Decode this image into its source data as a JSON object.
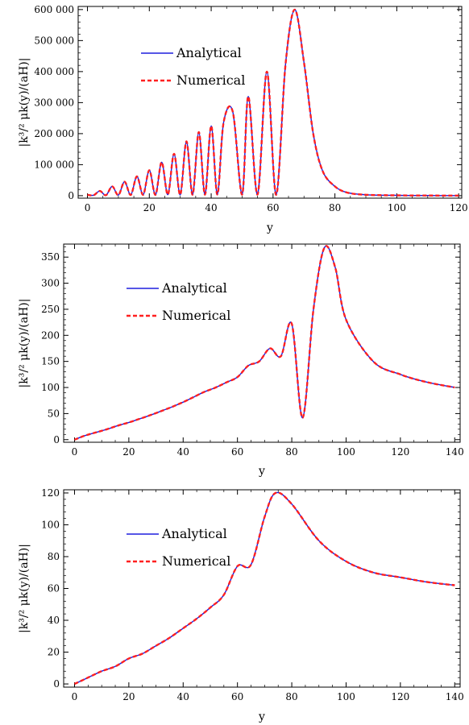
{
  "chart_data": [
    {
      "type": "line",
      "xlabel": "y",
      "ylabel": "|k³/² μk(y)/(aH)|",
      "xlim": [
        -3,
        121
      ],
      "ylim": [
        -8000,
        610000
      ],
      "xticks": [
        0,
        20,
        40,
        60,
        80,
        100,
        120
      ],
      "xtick_labels": [
        "0",
        "20",
        "40",
        "60",
        "80",
        "100",
        "120"
      ],
      "yticks": [
        0,
        100000,
        200000,
        300000,
        400000,
        500000,
        600000
      ],
      "ytick_labels": [
        "0",
        "100 000",
        "200 000",
        "300 000",
        "400 000",
        "500 000",
        "600 000"
      ],
      "legend": {
        "placement": "upper-left",
        "entries": [
          {
            "label": "Analytical",
            "color": "#1f1fdd",
            "style": "solid"
          },
          {
            "label": "Numerical",
            "color": "#ff2020",
            "style": "dashed"
          }
        ]
      },
      "series": [
        {
          "name": "Analytical",
          "color": "#1f1fdd",
          "style": "solid",
          "x": [
            0,
            2,
            4,
            6,
            8,
            10,
            12,
            14,
            16,
            18,
            20,
            22,
            24,
            26,
            28,
            30,
            32,
            34,
            36,
            38,
            40,
            42,
            44,
            47,
            50,
            52,
            55,
            58,
            61,
            64,
            67,
            70,
            73,
            76,
            80,
            84,
            90,
            100,
            110,
            120
          ],
          "y": [
            3000,
            1500,
            15000,
            1500,
            30000,
            2000,
            45000,
            2500,
            62000,
            3000,
            82000,
            3000,
            108000,
            3500,
            135000,
            3000,
            175000,
            3500,
            205000,
            3500,
            225000,
            4000,
            235000,
            270000,
            4000,
            320000,
            4000,
            400000,
            3000,
            420000,
            600000,
            430000,
            200000,
            80000,
            30000,
            10000,
            3000,
            1000,
            500,
            300
          ]
        },
        {
          "name": "Numerical",
          "color": "#ff2020",
          "style": "dashed",
          "x": [
            0,
            2,
            4,
            6,
            8,
            10,
            12,
            14,
            16,
            18,
            20,
            22,
            24,
            26,
            28,
            30,
            32,
            34,
            36,
            38,
            40,
            42,
            44,
            47,
            50,
            52,
            55,
            58,
            61,
            64,
            67,
            70,
            73,
            76,
            80,
            84,
            90,
            100,
            110,
            120
          ],
          "y": [
            3000,
            1500,
            15000,
            1500,
            30000,
            2000,
            45000,
            2500,
            62000,
            3000,
            82000,
            3000,
            108000,
            3500,
            135000,
            3000,
            175000,
            3500,
            205000,
            3500,
            225000,
            4000,
            235000,
            270000,
            4000,
            320000,
            4000,
            400000,
            3000,
            420000,
            600000,
            430000,
            200000,
            80000,
            30000,
            10000,
            3000,
            1000,
            500,
            300
          ]
        }
      ]
    },
    {
      "type": "line",
      "xlabel": "y",
      "ylabel": "|k³/² μk(y)/(aH)|",
      "xlim": [
        -4,
        142
      ],
      "ylim": [
        -5,
        375
      ],
      "xticks": [
        0,
        20,
        40,
        60,
        80,
        100,
        120,
        140
      ],
      "xtick_labels": [
        "0",
        "20",
        "40",
        "60",
        "80",
        "100",
        "120",
        "140"
      ],
      "yticks": [
        0,
        50,
        100,
        150,
        200,
        250,
        300,
        350
      ],
      "ytick_labels": [
        "0",
        "50",
        "100",
        "150",
        "200",
        "250",
        "300",
        "350"
      ],
      "legend": {
        "placement": "upper-left",
        "entries": [
          {
            "label": "Analytical",
            "color": "#1f1fdd",
            "style": "solid"
          },
          {
            "label": "Numerical",
            "color": "#ff2020",
            "style": "dashed"
          }
        ]
      },
      "series": [
        {
          "name": "Analytical",
          "color": "#1f1fdd",
          "style": "solid",
          "x": [
            0,
            4,
            8,
            12,
            16,
            20,
            24,
            28,
            32,
            36,
            40,
            44,
            48,
            52,
            56,
            60,
            64,
            68,
            72,
            76,
            80,
            84,
            88,
            92,
            96,
            100,
            110,
            120,
            130,
            140
          ],
          "y": [
            0,
            8,
            14,
            20,
            27,
            33,
            40,
            47,
            55,
            63,
            72,
            82,
            92,
            100,
            110,
            120,
            142,
            150,
            175,
            160,
            222,
            42,
            250,
            368,
            330,
            230,
            150,
            125,
            110,
            100
          ]
        },
        {
          "name": "Numerical",
          "color": "#ff2020",
          "style": "dashed",
          "x": [
            0,
            4,
            8,
            12,
            16,
            20,
            24,
            28,
            32,
            36,
            40,
            44,
            48,
            52,
            56,
            60,
            64,
            68,
            72,
            76,
            80,
            84,
            88,
            92,
            96,
            100,
            110,
            120,
            130,
            140
          ],
          "y": [
            0,
            8,
            14,
            20,
            27,
            33,
            40,
            47,
            55,
            63,
            72,
            82,
            92,
            100,
            110,
            120,
            142,
            150,
            175,
            160,
            222,
            42,
            250,
            368,
            330,
            230,
            150,
            125,
            110,
            100
          ]
        }
      ]
    },
    {
      "type": "line",
      "xlabel": "y",
      "ylabel": "|k³/² μk(y)/(aH)|",
      "xlim": [
        -4,
        142
      ],
      "ylim": [
        -2,
        122
      ],
      "xticks": [
        0,
        20,
        40,
        60,
        80,
        100,
        120,
        140
      ],
      "xtick_labels": [
        "0",
        "20",
        "40",
        "60",
        "80",
        "100",
        "120",
        "140"
      ],
      "yticks": [
        0,
        20,
        40,
        60,
        80,
        100,
        120
      ],
      "ytick_labels": [
        "0",
        "20",
        "40",
        "60",
        "80",
        "100",
        "120"
      ],
      "legend": {
        "placement": "upper-left",
        "entries": [
          {
            "label": "Analytical",
            "color": "#1f1fdd",
            "style": "solid"
          },
          {
            "label": "Numerical",
            "color": "#ff2020",
            "style": "dashed"
          }
        ]
      },
      "series": [
        {
          "name": "Analytical",
          "color": "#1f1fdd",
          "style": "solid",
          "x": [
            0,
            5,
            10,
            15,
            20,
            25,
            30,
            35,
            40,
            45,
            50,
            55,
            60,
            65,
            70,
            74,
            80,
            90,
            100,
            110,
            120,
            130,
            140
          ],
          "y": [
            0,
            4,
            8,
            11,
            16,
            19,
            24,
            29,
            35,
            41,
            48,
            56,
            74,
            75,
            105,
            120,
            113,
            90,
            77,
            70,
            67,
            64,
            62
          ]
        },
        {
          "name": "Numerical",
          "color": "#ff2020",
          "style": "dashed",
          "x": [
            0,
            5,
            10,
            15,
            20,
            25,
            30,
            35,
            40,
            45,
            50,
            55,
            60,
            65,
            70,
            74,
            80,
            90,
            100,
            110,
            120,
            130,
            140
          ],
          "y": [
            0,
            4,
            8,
            11,
            16,
            19,
            24,
            29,
            35,
            41,
            48,
            56,
            74,
            75,
            105,
            120,
            113,
            90,
            77,
            70,
            67,
            64,
            62
          ]
        }
      ]
    }
  ]
}
